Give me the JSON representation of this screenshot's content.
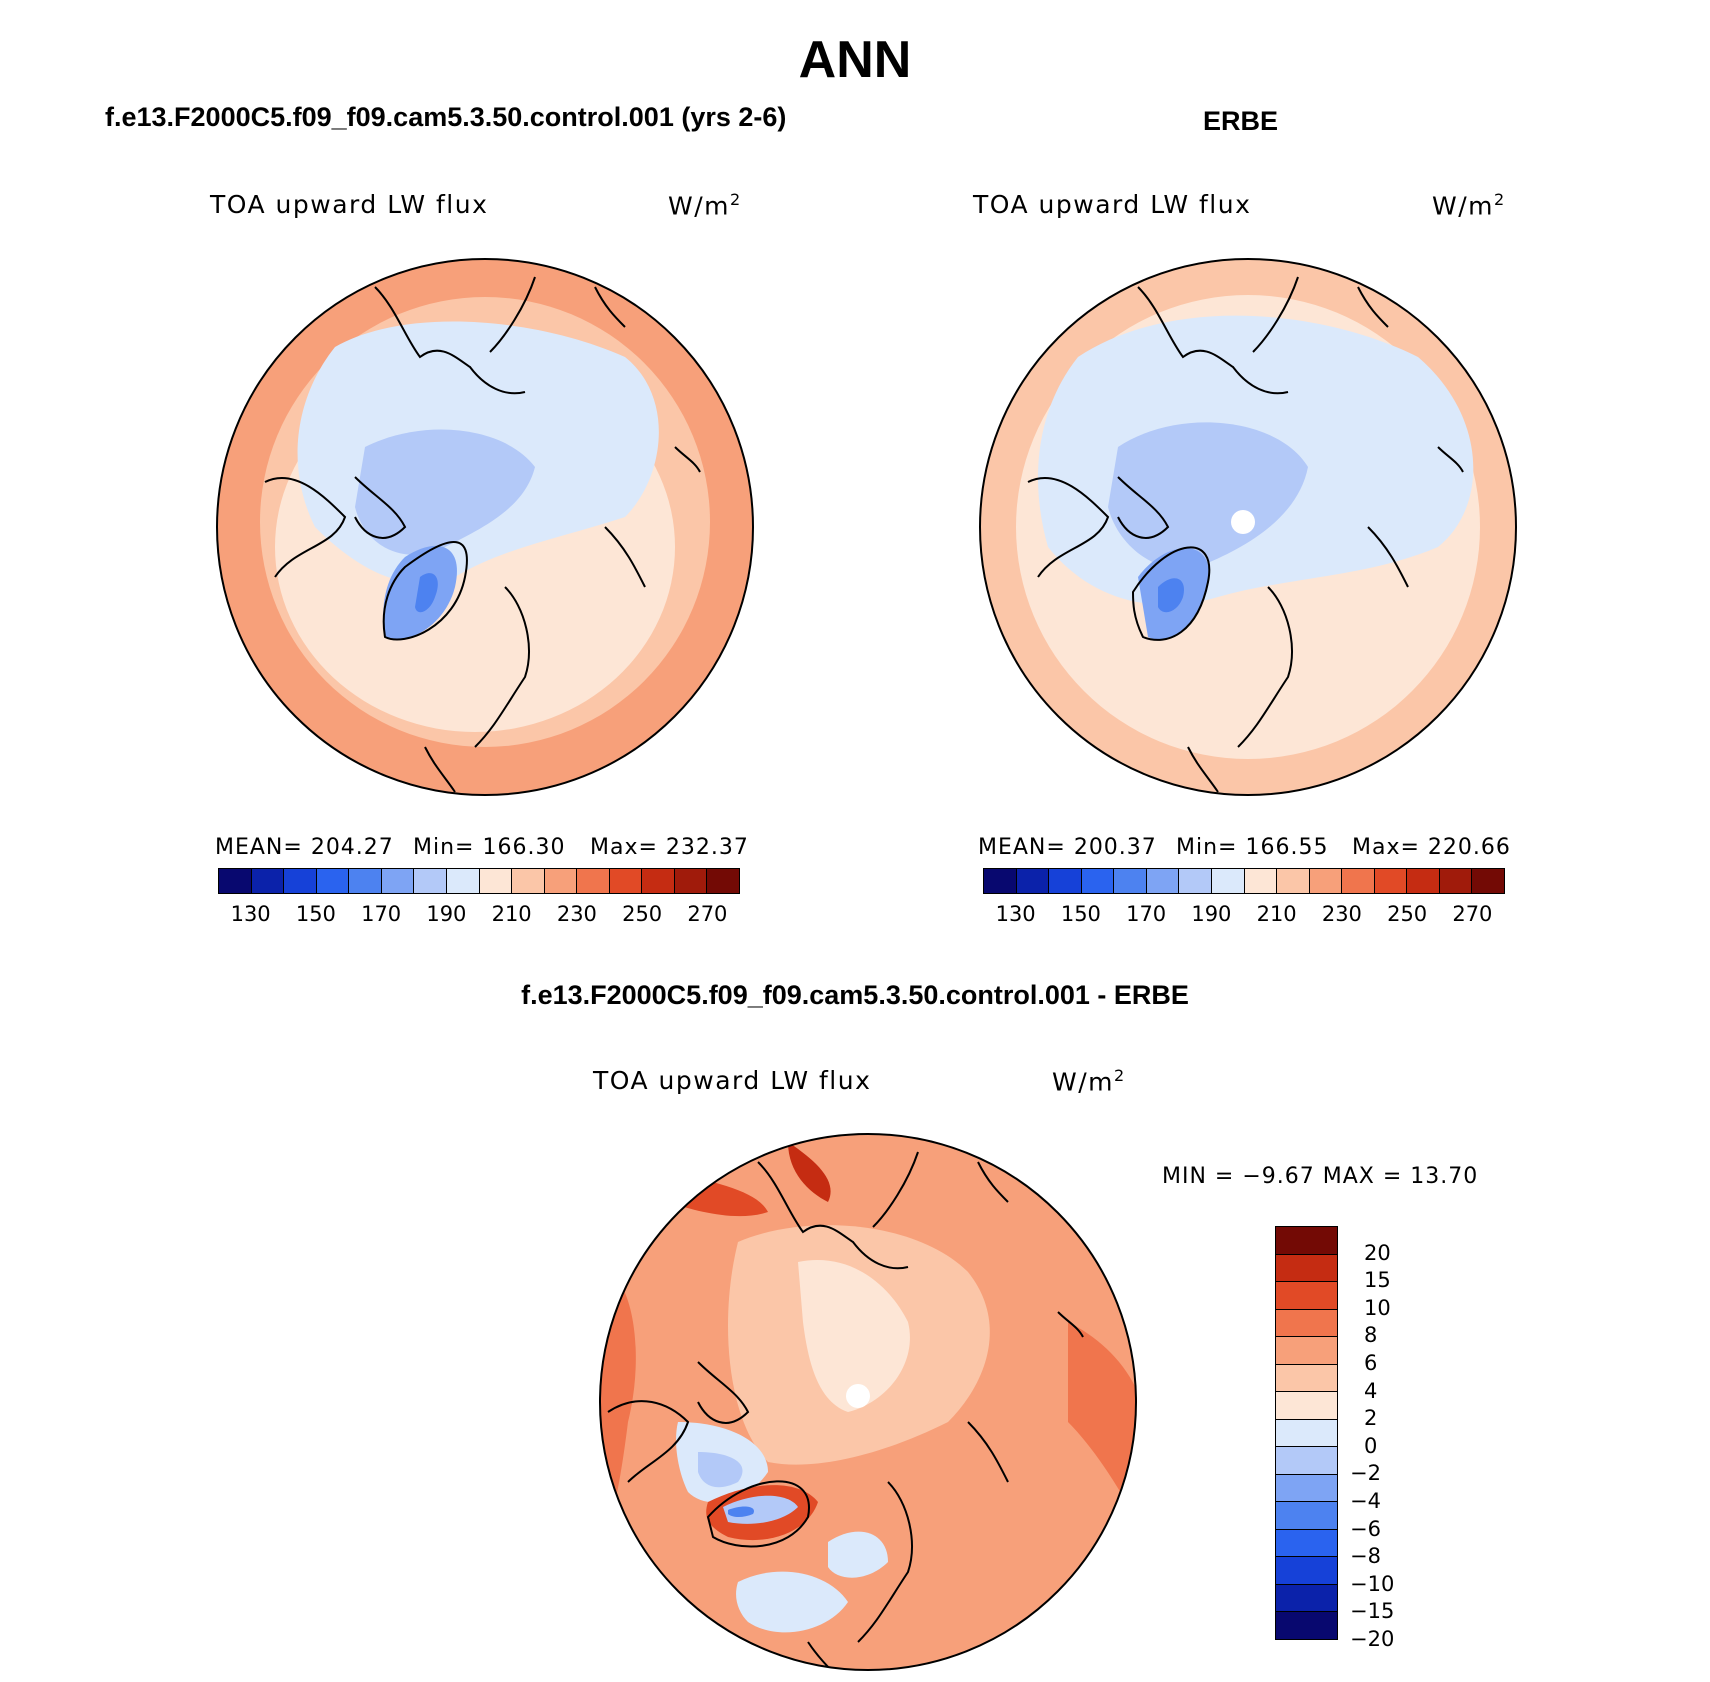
{
  "title": "ANN",
  "panels": [
    {
      "id": "model",
      "case_title": "f.e13.F2000C5.f09_f09.cam5.3.50.control.001 (yrs 2-6)",
      "field_label": "TOA upward LW flux",
      "units": "W/m",
      "units_exp": "2",
      "mean_text": "MEAN= 204.27",
      "min_text": "Min= 166.30",
      "max_text": "Max= 232.37"
    },
    {
      "id": "obs",
      "case_title": "ERBE",
      "field_label": "TOA upward LW flux",
      "units": "W/m",
      "units_exp": "2",
      "mean_text": "MEAN= 200.37",
      "min_text": "Min= 166.55",
      "max_text": "Max= 220.66"
    }
  ],
  "diff_panel": {
    "case_title": "f.e13.F2000C5.f09_f09.cam5.3.50.control.001 - ERBE",
    "field_label": "TOA upward LW flux",
    "units": "W/m",
    "units_exp": "2",
    "minmax_text": "MIN =   −9.67 MAX =   13.70"
  },
  "colorbar_abs": {
    "colors": [
      "#08086f",
      "#0b22aa",
      "#1641d8",
      "#2a63ef",
      "#4d82f0",
      "#7ea4f4",
      "#b3c9f8",
      "#dbe9fb",
      "#fde6d6",
      "#fbc6a8",
      "#f7a07a",
      "#f0754d",
      "#e14a26",
      "#c52c12",
      "#a01b0b",
      "#730a05"
    ],
    "tick_labels": [
      "130",
      "150",
      "170",
      "190",
      "210",
      "230",
      "250",
      "270"
    ]
  },
  "colorbar_diff": {
    "colors": [
      "#730a05",
      "#c52c12",
      "#e14a26",
      "#f0754d",
      "#f7a07a",
      "#fbc6a8",
      "#fde6d6",
      "#dbe9fb",
      "#b3c9f8",
      "#7ea4f4",
      "#4d82f0",
      "#2a63ef",
      "#1641d8",
      "#0b22aa",
      "#08086f"
    ],
    "tick_labels": [
      "20",
      "15",
      "10",
      "8",
      "6",
      "4",
      "2",
      "0",
      "−2",
      "−4",
      "−6",
      "−8",
      "−10",
      "−15",
      "−20"
    ]
  }
}
